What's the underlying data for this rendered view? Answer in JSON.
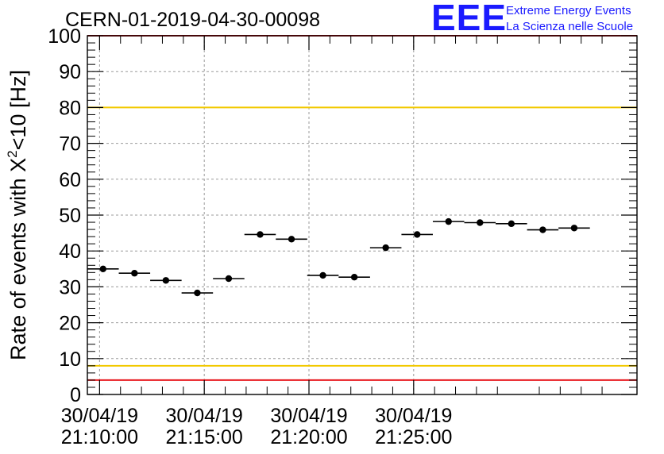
{
  "chart_data": {
    "type": "scatter",
    "title": "CERN-01-2019-04-30-00098",
    "ylabel_prefix": "Rate of events with X",
    "ylabel_sup": "2",
    "ylabel_suffix": "<10 [Hz]",
    "ylim": [
      0,
      100
    ],
    "yticks": [
      0,
      10,
      20,
      30,
      40,
      50,
      60,
      70,
      80,
      90,
      100
    ],
    "x_axis": "time",
    "xlim_seconds_from_first_tick": [
      -35,
      1540
    ],
    "xticks": [
      {
        "date": "30/04/19",
        "time": "21:10:00"
      },
      {
        "date": "30/04/19",
        "time": "21:15:00"
      },
      {
        "date": "30/04/19",
        "time": "21:20:00"
      },
      {
        "date": "30/04/19",
        "time": "21:25:00"
      }
    ],
    "bin_width_minutes": 1.5,
    "series": [
      {
        "bin_start_times": [
          "21:09:25",
          "21:10:55",
          "21:12:25",
          "21:13:55",
          "21:15:25",
          "21:16:55",
          "21:18:25",
          "21:19:55",
          "21:21:25",
          "21:22:55",
          "21:24:25",
          "21:25:55",
          "21:27:25",
          "21:28:55",
          "21:30:25",
          "21:31:55"
        ],
        "values": [
          35.0,
          33.8,
          31.8,
          28.3,
          32.3,
          44.6,
          43.3,
          33.2,
          32.7,
          40.9,
          44.6,
          48.2,
          47.9,
          47.6,
          45.9,
          46.4
        ]
      }
    ],
    "reference_lines": [
      {
        "y": 100,
        "color": "#e8191f"
      },
      {
        "y": 80,
        "color": "#f2c900"
      },
      {
        "y": 8,
        "color": "#f2c900"
      },
      {
        "y": 4,
        "color": "#e8191f"
      }
    ],
    "grid": true
  },
  "logo": {
    "mark": "EEE",
    "line1": "Extreme Energy Events",
    "line2": "La Scienza nelle Scuole",
    "color": "#1a1aff"
  }
}
